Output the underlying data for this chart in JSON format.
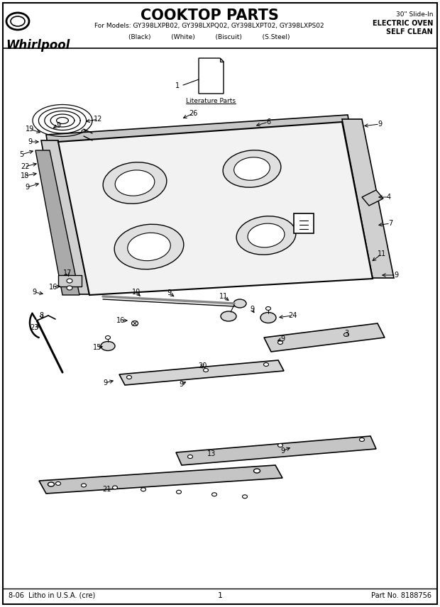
{
  "title": "COOKTOP PARTS",
  "subtitle_models": "For Models: GY398LXPB02, GY398LXPQ02, GY398LXPT02, GY398LXPS02",
  "subtitle_colors": "(Black)          (White)          (Biscuit)          (S.Steel)",
  "top_right_line1": "30\" Slide-In",
  "top_right_line2": "ELECTRIC OVEN",
  "top_right_line3": "SELF CLEAN",
  "whirlpool_text": "Whirlpool",
  "bottom_left": "8-06  Litho in U.S.A. (cre)",
  "bottom_center": "1",
  "bottom_right": "Part No. 8188756",
  "bg_color": "#ffffff",
  "fg_color": "#000000",
  "border_color": "#000000"
}
